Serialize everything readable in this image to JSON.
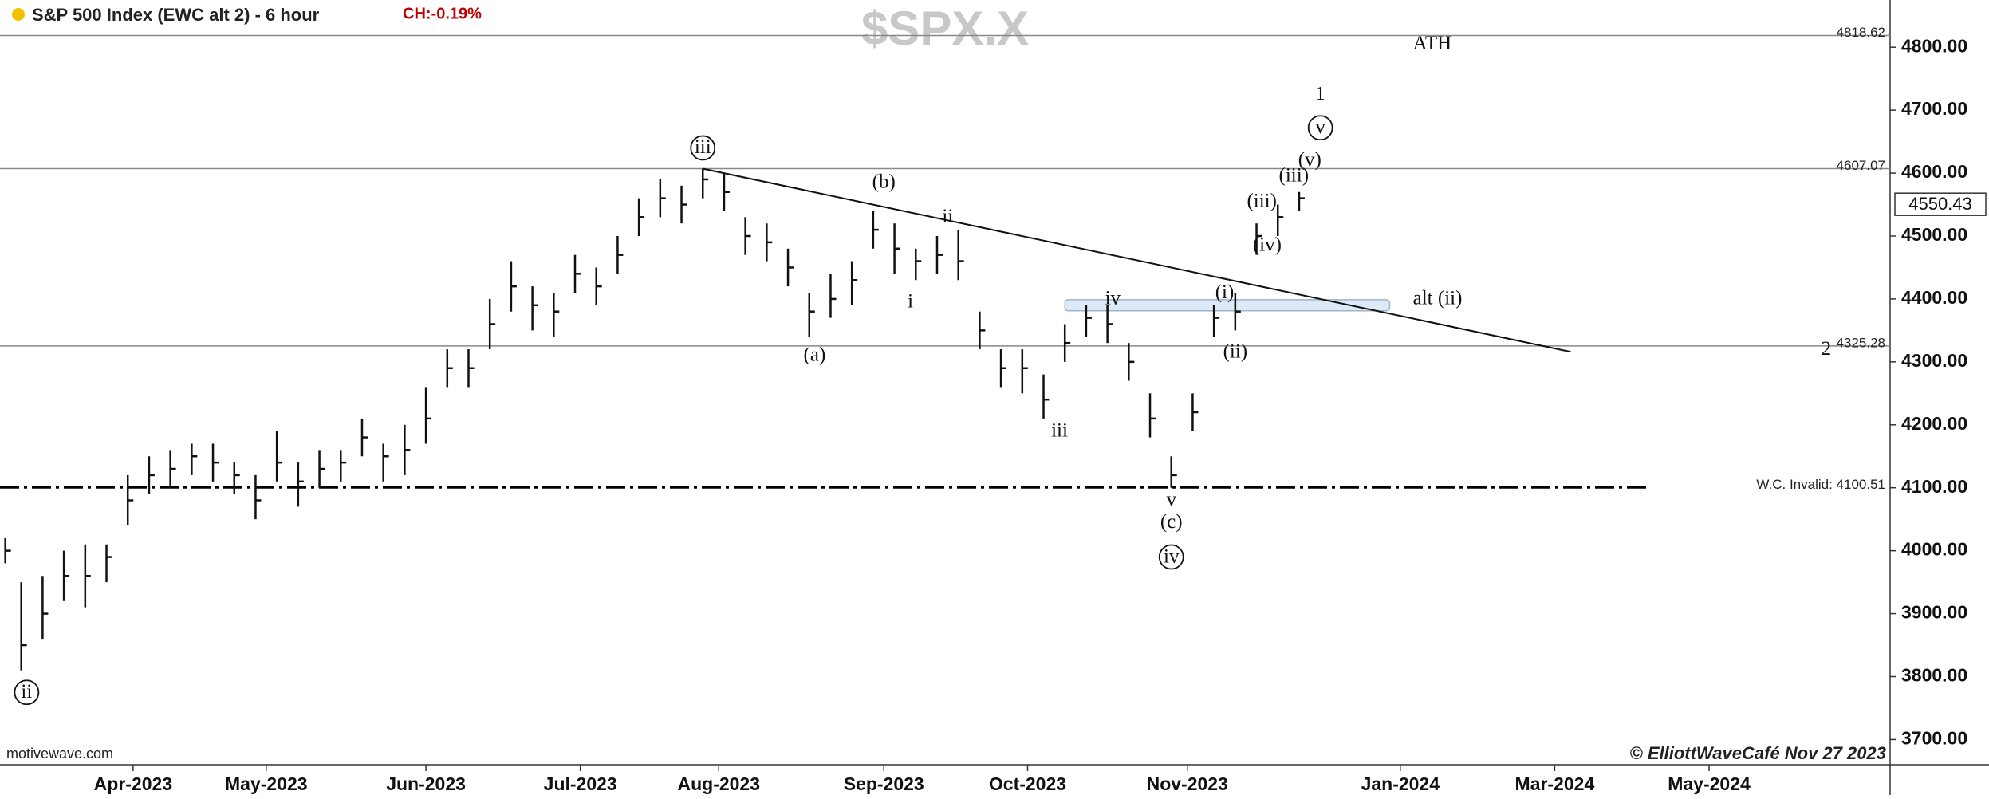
{
  "chart_data": {
    "type": "ohlc",
    "title": "S&P 500 Index (EWC alt 2) - 6 hour",
    "change": "CH:-0.19%",
    "watermark": "$SPX.X",
    "source": "motivewave.com",
    "credit": "© ElliottWaveCafé Nov 27 2023",
    "color": "#111111",
    "x": [
      1,
      4,
      8,
      12,
      16,
      20,
      24,
      28,
      32,
      36,
      40,
      44,
      48,
      52,
      56,
      60,
      64,
      68,
      72,
      76,
      80,
      84,
      88,
      92,
      96,
      100,
      104,
      108,
      112,
      116,
      120,
      124,
      128,
      132,
      136,
      140,
      144,
      148,
      152,
      156,
      160,
      164,
      168,
      172,
      176,
      180,
      184,
      188,
      192,
      196,
      200,
      204,
      208,
      212,
      216,
      220,
      224,
      228,
      232,
      236,
      240,
      244
    ],
    "high": [
      4020,
      3950,
      3960,
      4000,
      4010,
      4010,
      4120,
      4150,
      4160,
      4170,
      4170,
      4140,
      4120,
      4190,
      4140,
      4160,
      4160,
      4210,
      4170,
      4200,
      4260,
      4320,
      4320,
      4400,
      4460,
      4420,
      4410,
      4470,
      4450,
      4500,
      4560,
      4590,
      4580,
      4607,
      4600,
      4530,
      4520,
      4480,
      4410,
      4440,
      4460,
      4540,
      4520,
      4480,
      4500,
      4510,
      4380,
      4320,
      4320,
      4280,
      4360,
      4390,
      4390,
      4330,
      4250,
      4150,
      4250,
      4390,
      4410,
      4520,
      4550,
      4570
    ],
    "low": [
      3980,
      3810,
      3860,
      3920,
      3910,
      3950,
      4040,
      4090,
      4100,
      4120,
      4110,
      4090,
      4050,
      4110,
      4070,
      4100,
      4110,
      4150,
      4110,
      4120,
      4170,
      4260,
      4260,
      4320,
      4380,
      4350,
      4340,
      4410,
      4390,
      4440,
      4500,
      4530,
      4520,
      4560,
      4540,
      4470,
      4460,
      4420,
      4340,
      4370,
      4390,
      4480,
      4440,
      4430,
      4440,
      4430,
      4320,
      4260,
      4250,
      4210,
      4300,
      4340,
      4330,
      4270,
      4180,
      4100,
      4190,
      4340,
      4350,
      4470,
      4500,
      4540
    ],
    "close": [
      4000,
      3850,
      3900,
      3960,
      3960,
      3990,
      4080,
      4120,
      4130,
      4150,
      4140,
      4120,
      4080,
      4140,
      4110,
      4130,
      4140,
      4180,
      4150,
      4160,
      4210,
      4290,
      4290,
      4360,
      4420,
      4390,
      4380,
      4440,
      4420,
      4470,
      4530,
      4560,
      4550,
      4590,
      4570,
      4500,
      4490,
      4450,
      4380,
      4400,
      4430,
      4510,
      4480,
      4460,
      4470,
      4460,
      4350,
      4290,
      4290,
      4240,
      4330,
      4370,
      4360,
      4300,
      4210,
      4120,
      4220,
      4370,
      4380,
      4500,
      4530,
      4560
    ],
    "last": 4550.43,
    "xlim": [
      0,
      355
    ],
    "ylim": [
      3660,
      4875
    ],
    "xticks": [
      {
        "value": 25,
        "label": "Apr-2023"
      },
      {
        "value": 50,
        "label": "May-2023"
      },
      {
        "value": 80,
        "label": "Jun-2023"
      },
      {
        "value": 109,
        "label": "Jul-2023"
      },
      {
        "value": 135,
        "label": "Aug-2023"
      },
      {
        "value": 166,
        "label": "Sep-2023"
      },
      {
        "value": 193,
        "label": "Oct-2023"
      },
      {
        "value": 223,
        "label": "Nov-2023"
      },
      {
        "value": 263,
        "label": "Jan-2024"
      },
      {
        "value": 292,
        "label": "Mar-2024"
      },
      {
        "value": 321,
        "label": "May-2024"
      }
    ],
    "yticks": [
      {
        "value": 3700,
        "label": "3700.00"
      },
      {
        "value": 3800,
        "label": "3800.00"
      },
      {
        "value": 3900,
        "label": "3900.00"
      },
      {
        "value": 4000,
        "label": "4000.00"
      },
      {
        "value": 4100,
        "label": "4100.00"
      },
      {
        "value": 4200,
        "label": "4200.00"
      },
      {
        "value": 4300,
        "label": "4300.00"
      },
      {
        "value": 4400,
        "label": "4400.00"
      },
      {
        "value": 4500,
        "label": "4500.00"
      },
      {
        "value": 4600,
        "label": "4600.00"
      },
      {
        "value": 4700,
        "label": "4700.00"
      },
      {
        "value": 4800,
        "label": "4800.00"
      }
    ],
    "levels": [
      4818.62,
      4607.07,
      4325.28,
      {
        "value": 4100.51,
        "label": "W.C. Invalid: 4100.51"
      }
    ],
    "trendline": {
      "x": [
        132,
        295
      ],
      "y": [
        4607,
        4316
      ]
    },
    "zone": {
      "x": [
        200,
        261
      ],
      "y": [
        4385,
        4395
      ]
    },
    "annotations": [
      {
        "text": "ii",
        "at": [
          5,
          3775
        ],
        "circled": true
      },
      {
        "text": "iii",
        "at": [
          132,
          4640
        ],
        "circled": true
      },
      {
        "text": "iv",
        "at": [
          220,
          3990
        ],
        "circled": true
      },
      {
        "text": "v",
        "at": [
          248,
          4672
        ],
        "circled": true
      },
      {
        "text": "(b)",
        "at": [
          166,
          4585
        ]
      },
      {
        "text": "ii",
        "at": [
          178,
          4530
        ]
      },
      {
        "text": "i",
        "at": [
          171,
          4395
        ]
      },
      {
        "text": "(a)",
        "at": [
          153,
          4310
        ]
      },
      {
        "text": "iv",
        "at": [
          209,
          4400
        ]
      },
      {
        "text": "iii",
        "at": [
          199,
          4190
        ]
      },
      {
        "text": "v",
        "at": [
          220,
          4080
        ]
      },
      {
        "text": "(c)",
        "at": [
          220,
          4045
        ]
      },
      {
        "text": "(i)",
        "at": [
          230,
          4410
        ]
      },
      {
        "text": "(ii)",
        "at": [
          232,
          4315
        ]
      },
      {
        "text": "(iii)",
        "at": [
          237,
          4555
        ]
      },
      {
        "text": "(iv)",
        "at": [
          238,
          4485
        ]
      },
      {
        "text": "(v)",
        "at": [
          246,
          4620
        ]
      },
      {
        "text": "(iii)",
        "at": [
          243,
          4595
        ],
        "color": "#d01010"
      },
      {
        "text": "1",
        "at": [
          248,
          4725
        ]
      },
      {
        "text": "2",
        "at": [
          343,
          4320
        ]
      },
      {
        "text": "ATH",
        "at": [
          269,
          4805
        ]
      },
      {
        "text": "alt (ii)",
        "at": [
          270,
          4400
        ]
      }
    ]
  }
}
